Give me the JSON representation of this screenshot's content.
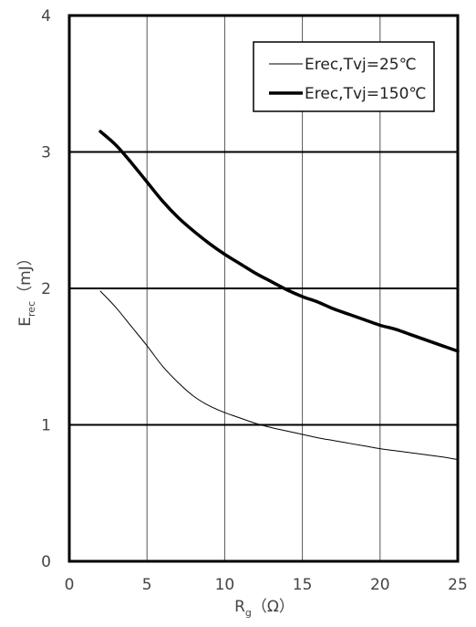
{
  "chart_data": {
    "type": "line",
    "xlabel": {
      "main": "R",
      "sub": "g",
      "unit": "（Ω）"
    },
    "ylabel": {
      "main": "E",
      "sub": "rec",
      "unit": "（mJ）"
    },
    "xlim": [
      0,
      25
    ],
    "ylim": [
      0,
      4
    ],
    "xticks": [
      "0",
      "5",
      "10",
      "15",
      "20",
      "25"
    ],
    "yticks": [
      "0",
      "1",
      "2",
      "3",
      "4"
    ],
    "grid": true,
    "legend": {
      "placement": "top-right"
    },
    "series": [
      {
        "name": "Erec,Tvj=25℃",
        "color": "#000000",
        "weight": "thin",
        "x": [
          2,
          3,
          4,
          5,
          6,
          7,
          8,
          9,
          10,
          11,
          12,
          13,
          14,
          15,
          16,
          17,
          18,
          19,
          20,
          21,
          22,
          23,
          24,
          25
        ],
        "y": [
          1.98,
          1.86,
          1.72,
          1.58,
          1.43,
          1.31,
          1.21,
          1.14,
          1.09,
          1.05,
          1.01,
          0.98,
          0.955,
          0.93,
          0.905,
          0.885,
          0.865,
          0.845,
          0.825,
          0.81,
          0.795,
          0.78,
          0.765,
          0.745
        ]
      },
      {
        "name": "Erec,Tvj=150℃",
        "color": "#000000",
        "weight": "thick",
        "x": [
          2,
          3,
          4,
          5,
          6,
          7,
          8,
          9,
          10,
          11,
          12,
          13,
          14,
          15,
          16,
          17,
          18,
          19,
          20,
          21,
          22,
          23,
          24,
          25
        ],
        "y": [
          3.15,
          3.05,
          2.92,
          2.78,
          2.64,
          2.52,
          2.42,
          2.33,
          2.25,
          2.18,
          2.11,
          2.05,
          1.99,
          1.94,
          1.9,
          1.85,
          1.81,
          1.77,
          1.73,
          1.7,
          1.66,
          1.62,
          1.58,
          1.54
        ]
      }
    ]
  }
}
